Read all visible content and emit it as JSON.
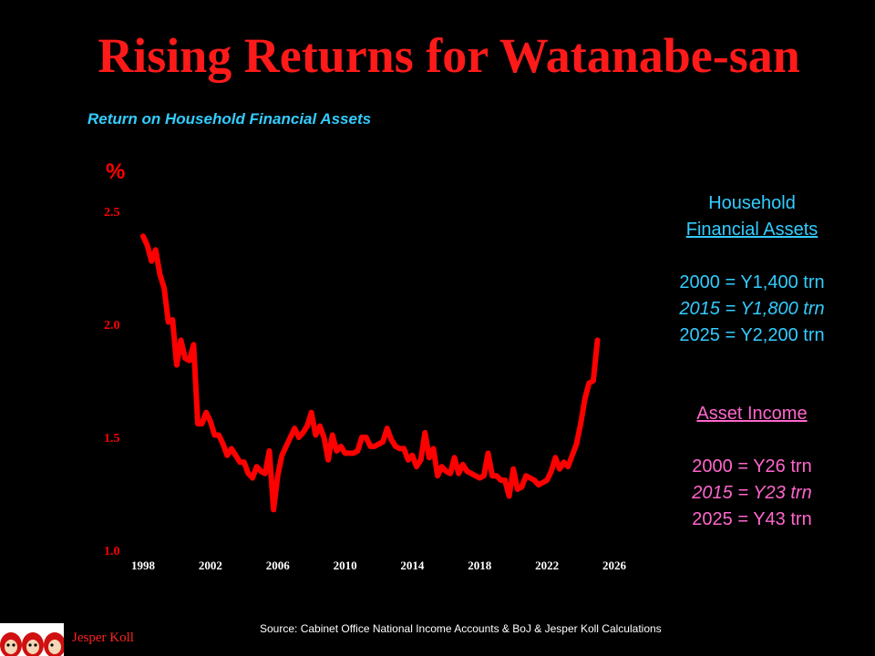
{
  "slide": {
    "title": "Rising Returns for Watanabe-san",
    "source": "Source: Cabinet Office National Income Accounts & BoJ & Jesper Koll Calculations",
    "author": "Jesper Koll"
  },
  "info_panel": {
    "assets_line1": "Household",
    "assets_line2": "Financial Assets",
    "assets_2000": "2000 = Y1,400 trn",
    "assets_2015": "2015 = Y1,800 trn",
    "assets_2025": "2025 = Y2,200 trn",
    "income_heading": "Asset Income",
    "income_2000": "2000 = Y26 trn",
    "income_2015": "2015 = Y23 trn",
    "income_2025": "2025 = Y43 trn"
  },
  "colors": {
    "title": "#ff1a1a",
    "line": "#ff0000",
    "axis_text": "#ff0000",
    "tick_text": "#ffffff",
    "subtitle": "#33ccff",
    "info_blue": "#33ccff",
    "info_pink": "#ff66cc",
    "background": "#000000"
  },
  "chart_data": {
    "type": "line",
    "title": "Return on Household Financial Assets",
    "ylabel": "%",
    "xlabel": "",
    "xlim": [
      1998,
      2026
    ],
    "ylim": [
      1.0,
      2.5
    ],
    "xticks": [
      1998,
      2002,
      2006,
      2010,
      2014,
      2018,
      2022,
      2026
    ],
    "yticks": [
      1.0,
      1.5,
      2.0,
      2.5
    ],
    "ytick_labels": [
      "1.0",
      "1.5",
      "2.0",
      "2.5"
    ],
    "grid": false,
    "series": [
      {
        "values": [
          [
            1998.0,
            2.39
          ],
          [
            1998.25,
            2.35
          ],
          [
            1998.5,
            2.28
          ],
          [
            1998.75,
            2.33
          ],
          [
            1999.0,
            2.22
          ],
          [
            1999.25,
            2.16
          ],
          [
            1999.5,
            2.01
          ],
          [
            1999.75,
            2.02
          ],
          [
            2000.0,
            1.82
          ],
          [
            2000.25,
            1.93
          ],
          [
            2000.5,
            1.85
          ],
          [
            2000.75,
            1.84
          ],
          [
            2001.0,
            1.91
          ],
          [
            2001.25,
            1.56
          ],
          [
            2001.5,
            1.56
          ],
          [
            2001.75,
            1.61
          ],
          [
            2002.0,
            1.57
          ],
          [
            2002.25,
            1.51
          ],
          [
            2002.5,
            1.51
          ],
          [
            2002.75,
            1.47
          ],
          [
            2003.0,
            1.42
          ],
          [
            2003.25,
            1.45
          ],
          [
            2003.5,
            1.42
          ],
          [
            2003.75,
            1.39
          ],
          [
            2004.0,
            1.39
          ],
          [
            2004.25,
            1.34
          ],
          [
            2004.5,
            1.32
          ],
          [
            2004.75,
            1.37
          ],
          [
            2005.0,
            1.35
          ],
          [
            2005.25,
            1.34
          ],
          [
            2005.5,
            1.44
          ],
          [
            2005.75,
            1.18
          ],
          [
            2006.0,
            1.33
          ],
          [
            2006.25,
            1.42
          ],
          [
            2006.5,
            1.46
          ],
          [
            2006.75,
            1.5
          ],
          [
            2007.0,
            1.54
          ],
          [
            2007.25,
            1.5
          ],
          [
            2007.5,
            1.52
          ],
          [
            2007.75,
            1.55
          ],
          [
            2008.0,
            1.61
          ],
          [
            2008.25,
            1.51
          ],
          [
            2008.5,
            1.55
          ],
          [
            2008.75,
            1.5
          ],
          [
            2009.0,
            1.4
          ],
          [
            2009.25,
            1.51
          ],
          [
            2009.5,
            1.44
          ],
          [
            2009.75,
            1.46
          ],
          [
            2010.0,
            1.43
          ],
          [
            2010.25,
            1.43
          ],
          [
            2010.5,
            1.43
          ],
          [
            2010.75,
            1.44
          ],
          [
            2011.0,
            1.5
          ],
          [
            2011.25,
            1.5
          ],
          [
            2011.5,
            1.46
          ],
          [
            2011.75,
            1.46
          ],
          [
            2012.0,
            1.47
          ],
          [
            2012.25,
            1.48
          ],
          [
            2012.5,
            1.54
          ],
          [
            2012.75,
            1.49
          ],
          [
            2013.0,
            1.46
          ],
          [
            2013.25,
            1.45
          ],
          [
            2013.5,
            1.45
          ],
          [
            2013.75,
            1.4
          ],
          [
            2014.0,
            1.42
          ],
          [
            2014.25,
            1.37
          ],
          [
            2014.5,
            1.4
          ],
          [
            2014.75,
            1.52
          ],
          [
            2015.0,
            1.41
          ],
          [
            2015.25,
            1.45
          ],
          [
            2015.5,
            1.33
          ],
          [
            2015.75,
            1.37
          ],
          [
            2016.0,
            1.35
          ],
          [
            2016.25,
            1.34
          ],
          [
            2016.5,
            1.41
          ],
          [
            2016.75,
            1.34
          ],
          [
            2017.0,
            1.38
          ],
          [
            2017.25,
            1.35
          ],
          [
            2017.5,
            1.34
          ],
          [
            2017.75,
            1.33
          ],
          [
            2018.0,
            1.32
          ],
          [
            2018.25,
            1.33
          ],
          [
            2018.5,
            1.43
          ],
          [
            2018.75,
            1.33
          ],
          [
            2019.0,
            1.33
          ],
          [
            2019.25,
            1.31
          ],
          [
            2019.5,
            1.31
          ],
          [
            2019.75,
            1.24
          ],
          [
            2020.0,
            1.36
          ],
          [
            2020.25,
            1.27
          ],
          [
            2020.5,
            1.28
          ],
          [
            2020.75,
            1.33
          ],
          [
            2021.0,
            1.32
          ],
          [
            2021.25,
            1.31
          ],
          [
            2021.5,
            1.29
          ],
          [
            2021.75,
            1.3
          ],
          [
            2022.0,
            1.31
          ],
          [
            2022.25,
            1.35
          ],
          [
            2022.5,
            1.41
          ],
          [
            2022.75,
            1.36
          ],
          [
            2023.0,
            1.39
          ],
          [
            2023.25,
            1.37
          ],
          [
            2023.5,
            1.42
          ],
          [
            2023.75,
            1.47
          ],
          [
            2024.0,
            1.56
          ],
          [
            2024.25,
            1.67
          ],
          [
            2024.5,
            1.74
          ],
          [
            2024.75,
            1.75
          ],
          [
            2025.0,
            1.93
          ]
        ]
      }
    ]
  }
}
